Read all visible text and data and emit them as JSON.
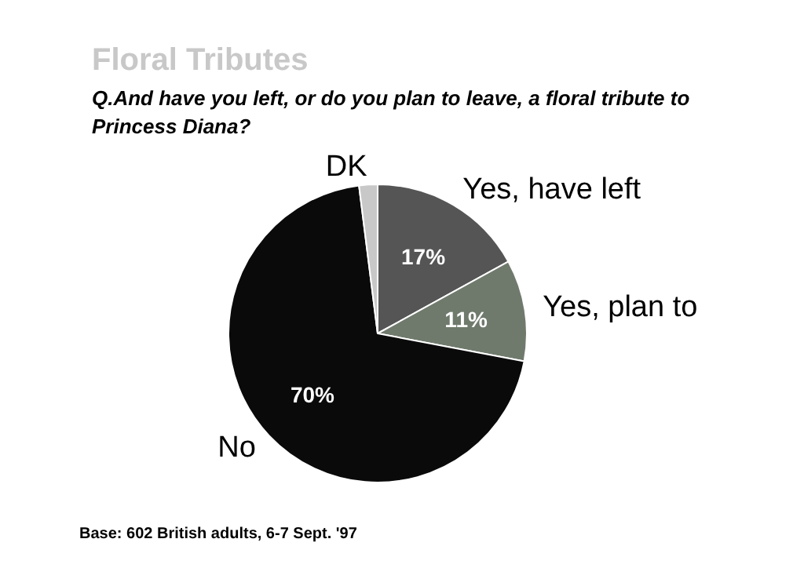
{
  "chart_data": {
    "type": "pie",
    "title": "Floral Tributes",
    "subtitle": "Q.And have you left, or do you plan to leave, a floral tribute to Princess Diana?",
    "categories": [
      "Yes, have left",
      "Yes, plan to",
      "No",
      "DK"
    ],
    "values": [
      17,
      11,
      70,
      2
    ],
    "colors": [
      "#555555",
      "#6f7a6c",
      "#0a0a0a",
      "#c8c8c8"
    ],
    "value_labels": [
      "17%",
      "11%",
      "70%",
      null
    ],
    "annotations": [
      "Base: 602 British adults, 6-7 Sept. '97"
    ]
  }
}
